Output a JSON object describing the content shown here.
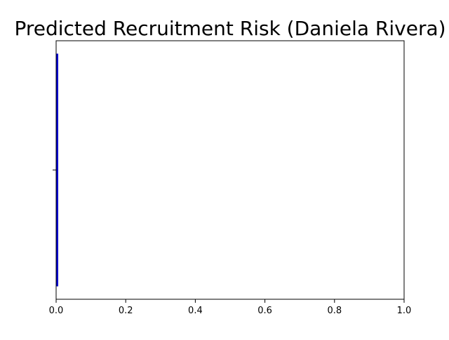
{
  "chart_data": {
    "type": "bar",
    "orientation": "horizontal",
    "title": "Predicted Recruitment Risk (Daniela Rivera)",
    "xlabel": "",
    "ylabel": "",
    "categories": [
      ""
    ],
    "values": [
      0.006
    ],
    "bar_color": "#0000cc",
    "xlim": [
      0,
      1
    ],
    "x_ticks": [
      0.0,
      0.2,
      0.4,
      0.6,
      0.8,
      1.0
    ],
    "x_tick_labels": [
      "0.0",
      "0.2",
      "0.4",
      "0.6",
      "0.8",
      "1.0"
    ],
    "grid": false,
    "legend": "none"
  }
}
